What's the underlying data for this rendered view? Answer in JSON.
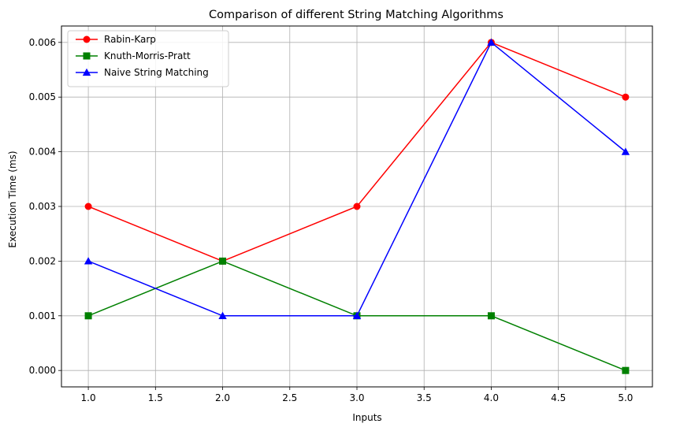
{
  "chart_data": {
    "type": "line",
    "title": "Comparison of different String Matching Algorithms",
    "xlabel": "Inputs",
    "ylabel": "Execution Time (ms)",
    "x": [
      1,
      2,
      3,
      4,
      5
    ],
    "xlim": [
      0.8,
      5.2
    ],
    "ylim": [
      -0.0003,
      0.0063
    ],
    "xticks": [
      "1.0",
      "1.5",
      "2.0",
      "2.5",
      "3.0",
      "3.5",
      "4.0",
      "4.5",
      "5.0"
    ],
    "yticks": [
      "0.000",
      "0.001",
      "0.002",
      "0.003",
      "0.004",
      "0.005",
      "0.006"
    ],
    "grid": true,
    "legend_position": "top-left",
    "series": [
      {
        "name": "Rabin-Karp",
        "values": [
          0.003,
          0.002,
          0.003,
          0.006,
          0.005
        ],
        "color": "#ff0000",
        "marker": "circle"
      },
      {
        "name": "Knuth-Morris-Pratt",
        "values": [
          0.001,
          0.002,
          0.001,
          0.001,
          0.0
        ],
        "color": "#008000",
        "marker": "square"
      },
      {
        "name": "Naive String Matching",
        "values": [
          0.002,
          0.001,
          0.001,
          0.006,
          0.004
        ],
        "color": "#0000ff",
        "marker": "triangle"
      }
    ]
  }
}
